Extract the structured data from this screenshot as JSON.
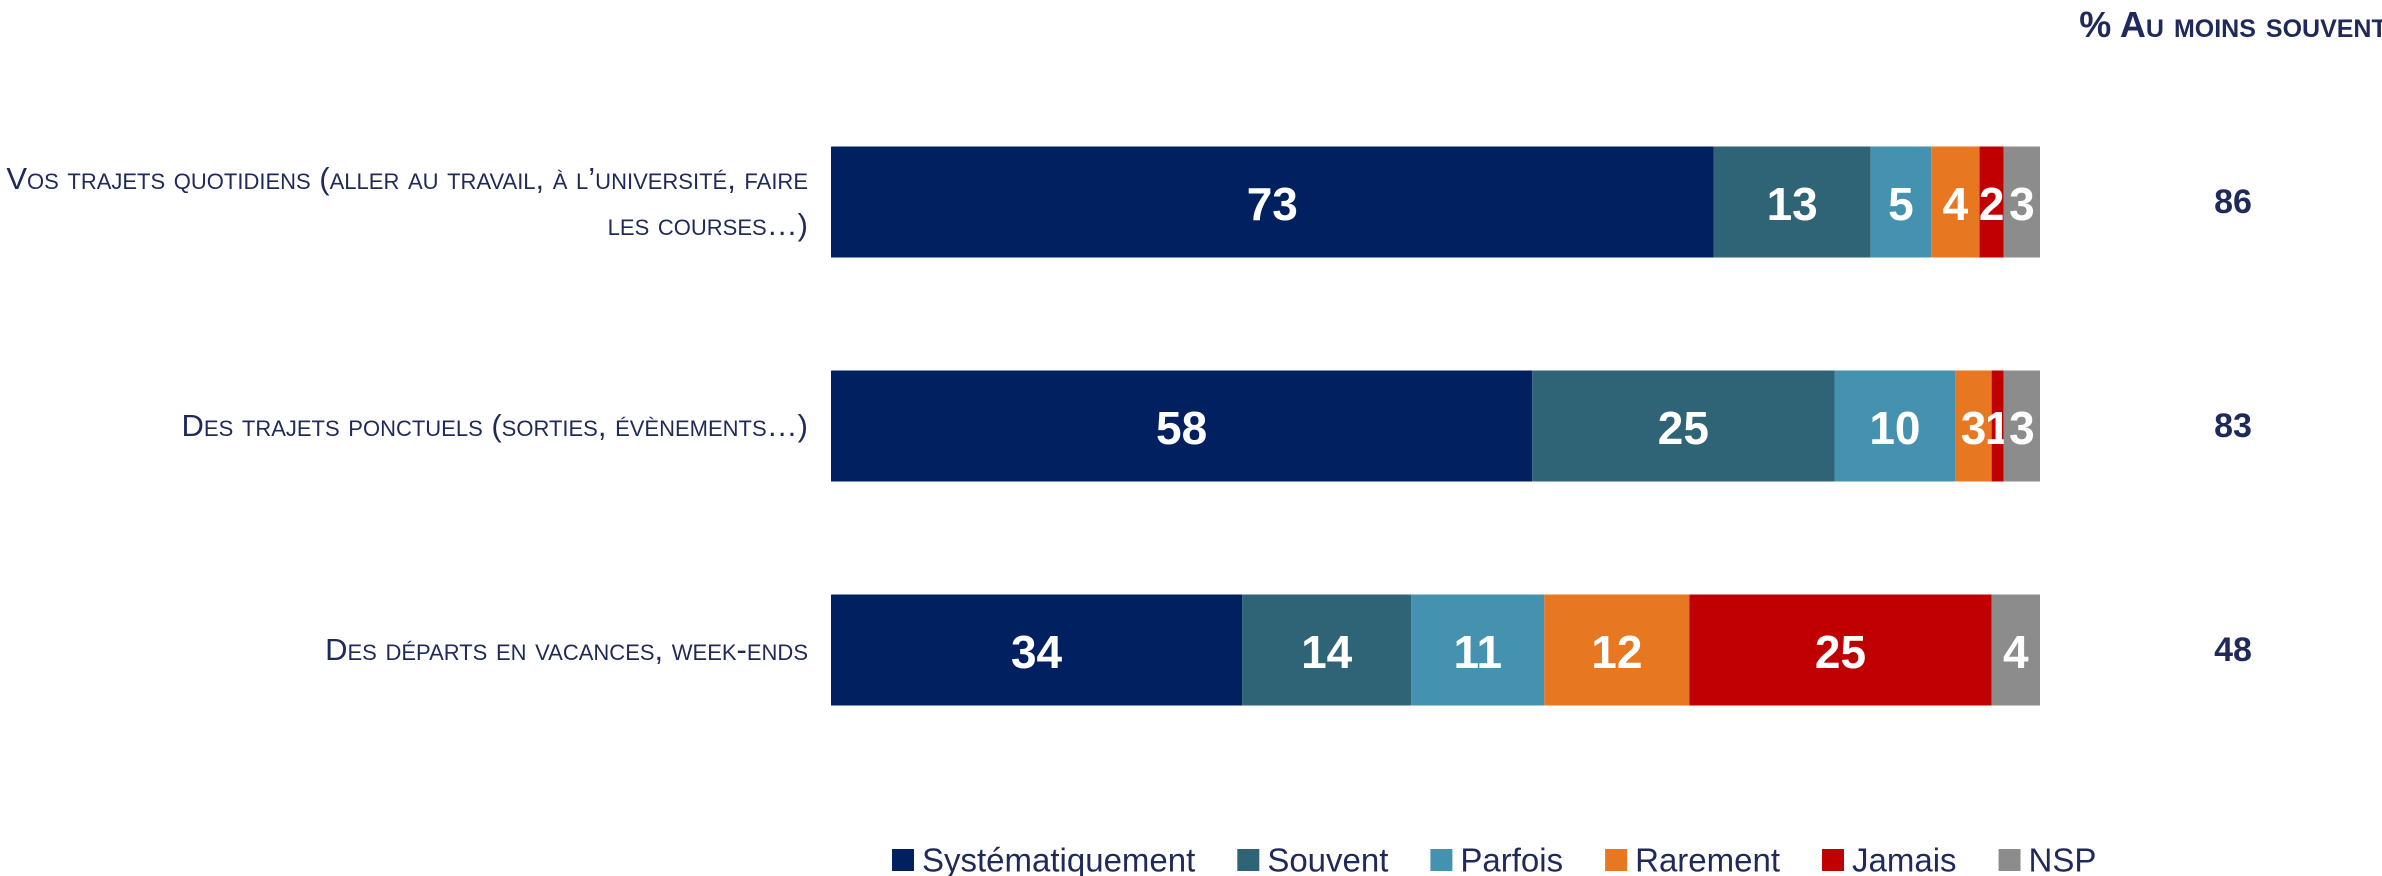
{
  "chart_data": {
    "type": "stacked_barh",
    "categories": [
      "Vos trajets quotidiens (aller au travail, à l’université, faire les courses…)",
      "Des trajets ponctuels (sorties, évènements…)",
      "Des départs en vacances, week-ends"
    ],
    "series": [
      {
        "name": "Systématiquement",
        "color": "#002060",
        "values": [
          73,
          58,
          34
        ]
      },
      {
        "name": "Souvent",
        "color": "#2e6475",
        "values": [
          13,
          25,
          14
        ]
      },
      {
        "name": "Parfois",
        "color": "#4592b0",
        "values": [
          5,
          10,
          11
        ]
      },
      {
        "name": "Rarement",
        "color": "#e87722",
        "values": [
          4,
          3,
          12
        ]
      },
      {
        "name": "Jamais",
        "color": "#c00000",
        "values": [
          2,
          1,
          25
        ]
      },
      {
        "name": "NSP",
        "color": "#8c8c8c",
        "values": [
          3,
          3,
          4
        ]
      }
    ],
    "xlim": [
      0,
      100
    ],
    "summary": {
      "title": "% Au moins souvent",
      "values": [
        86,
        83,
        48
      ]
    }
  }
}
